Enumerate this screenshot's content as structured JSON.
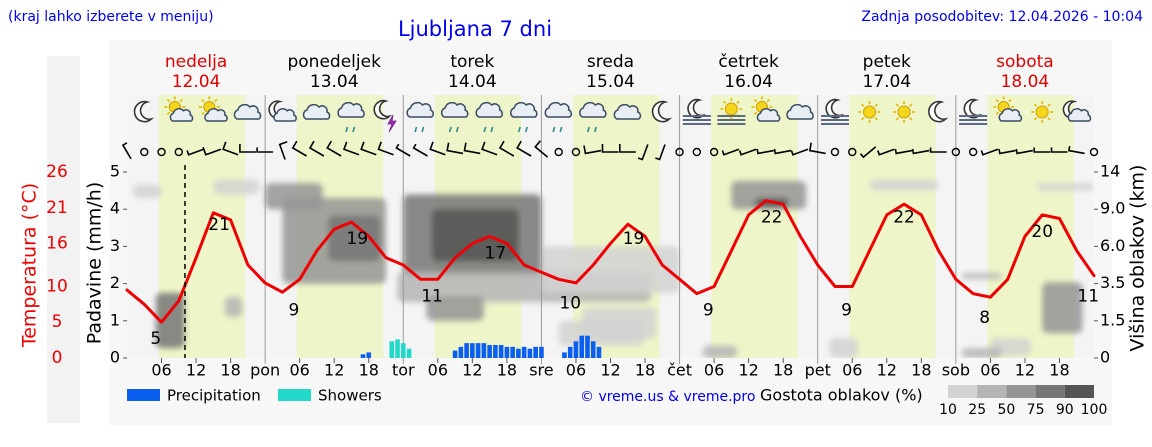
{
  "chart_data": {
    "type": "meteogram",
    "title": "Ljubljana 7 dni",
    "subtitle": "(kraj lahko izberete v meniju)",
    "updated": "Zadnja posodobitev: 12.04.2026 - 10:04",
    "credit": "© vreme.us & vreme.pro",
    "days": [
      {
        "name": "nedelja",
        "date": "12.04",
        "color": "#e00000"
      },
      {
        "name": "ponedeljek",
        "date": "13.04",
        "color": "#000000"
      },
      {
        "name": "torek",
        "date": "14.04",
        "color": "#000000"
      },
      {
        "name": "sreda",
        "date": "15.04",
        "color": "#000000"
      },
      {
        "name": "četrtek",
        "date": "16.04",
        "color": "#000000"
      },
      {
        "name": "petek",
        "date": "17.04",
        "color": "#000000"
      },
      {
        "name": "sobota",
        "date": "18.04",
        "color": "#e00000"
      }
    ],
    "daylight_hours": [
      5.5,
      20.5
    ],
    "daylight_color": "#eef5c8",
    "now": 10.07,
    "xlim": [
      0,
      168
    ],
    "xticks": [
      {
        "value": 6,
        "label": "06"
      },
      {
        "value": 12,
        "label": "12"
      },
      {
        "value": 18,
        "label": "18"
      },
      {
        "value": 24,
        "label": "pon"
      },
      {
        "value": 30,
        "label": "06"
      },
      {
        "value": 36,
        "label": "12"
      },
      {
        "value": 42,
        "label": "18"
      },
      {
        "value": 48,
        "label": "tor"
      },
      {
        "value": 54,
        "label": "06"
      },
      {
        "value": 60,
        "label": "12"
      },
      {
        "value": 66,
        "label": "18"
      },
      {
        "value": 72,
        "label": "sre"
      },
      {
        "value": 78,
        "label": "06"
      },
      {
        "value": 84,
        "label": "12"
      },
      {
        "value": 90,
        "label": "18"
      },
      {
        "value": 96,
        "label": "čet"
      },
      {
        "value": 102,
        "label": "06"
      },
      {
        "value": 108,
        "label": "12"
      },
      {
        "value": 114,
        "label": "18"
      },
      {
        "value": 120,
        "label": "pet"
      },
      {
        "value": 126,
        "label": "06"
      },
      {
        "value": 132,
        "label": "12"
      },
      {
        "value": 138,
        "label": "18"
      },
      {
        "value": 144,
        "label": "sob"
      },
      {
        "value": 150,
        "label": "06"
      },
      {
        "value": 156,
        "label": "12"
      },
      {
        "value": 162,
        "label": "18"
      }
    ],
    "ylabel": "Padavine (mm/h)",
    "ylim": [
      0,
      5
    ],
    "yticks": [
      0,
      1,
      2,
      3,
      4,
      5
    ],
    "y2label": "Višina oblakov (km)",
    "y2ticks": [
      0,
      1.5,
      3.5,
      {
        "value": 6,
        "label": "6.0"
      },
      {
        "value": 9,
        "label": "9.0"
      },
      14
    ],
    "temperature": {
      "label": "Temperatura (°C)",
      "color": "#ee0000",
      "ylim": [
        0,
        26
      ],
      "yticks": [
        0,
        5,
        10,
        16,
        21,
        26
      ],
      "x": [
        0,
        3,
        6,
        9,
        12,
        15,
        18,
        21,
        24,
        27,
        30,
        33,
        36,
        39,
        42,
        45,
        48,
        51,
        54,
        57,
        60,
        63,
        66,
        69,
        72,
        75,
        78,
        81,
        84,
        87,
        90,
        93,
        96,
        99,
        102,
        105,
        108,
        111,
        114,
        117,
        120,
        123,
        126,
        129,
        132,
        135,
        138,
        141,
        144,
        147,
        150,
        153,
        156,
        159,
        162,
        165,
        168
      ],
      "values": [
        9.5,
        7.5,
        5,
        8,
        14,
        20.3,
        19.3,
        13,
        10.5,
        9.2,
        11,
        15,
        18,
        19,
        17,
        14,
        13,
        11,
        11,
        14,
        16,
        17,
        16,
        13,
        12,
        11,
        10.5,
        13,
        16,
        18.7,
        17,
        13,
        11,
        9,
        10,
        15,
        20,
        22,
        21.5,
        17,
        13,
        10,
        10,
        15,
        20,
        21.5,
        20,
        15,
        11,
        9,
        8.5,
        11,
        17,
        20,
        19.5,
        15,
        11.5
      ],
      "extremes": [
        {
          "x": 5,
          "value": 5
        },
        {
          "x": 16,
          "value": 21
        },
        {
          "x": 29,
          "value": 9
        },
        {
          "x": 40,
          "value": 19
        },
        {
          "x": 53,
          "value": 11
        },
        {
          "x": 64,
          "value": 17
        },
        {
          "x": 77,
          "value": 10
        },
        {
          "x": 88,
          "value": 19
        },
        {
          "x": 101,
          "value": 9
        },
        {
          "x": 112,
          "value": 22
        },
        {
          "x": 125,
          "value": 9
        },
        {
          "x": 135,
          "value": 22
        },
        {
          "x": 149,
          "value": 8
        },
        {
          "x": 159,
          "value": 20
        },
        {
          "x": 167,
          "value": 11
        }
      ]
    },
    "series": [
      {
        "name": "Precipitation",
        "color": "#0a5ef0",
        "x": [
          41,
          42,
          57,
          58,
          59,
          60,
          61,
          62,
          63,
          64,
          65,
          66,
          67,
          68,
          69,
          70,
          71,
          72,
          76,
          77,
          78,
          79,
          80,
          81,
          82
        ],
        "values": [
          0.1,
          0.15,
          0.2,
          0.3,
          0.4,
          0.4,
          0.4,
          0.4,
          0.35,
          0.35,
          0.35,
          0.3,
          0.3,
          0.25,
          0.3,
          0.25,
          0.3,
          0.3,
          0.15,
          0.3,
          0.45,
          0.6,
          0.6,
          0.45,
          0.3
        ]
      },
      {
        "name": "Showers",
        "color": "#22d9c9",
        "x": [
          46,
          47,
          48,
          49
        ],
        "values": [
          0.45,
          0.5,
          0.4,
          0.25
        ]
      }
    ],
    "cloud_legend": {
      "title": "Gostota oblakov (%)",
      "ticks": [
        10,
        25,
        50,
        75,
        90,
        100
      ],
      "colors": [
        "#d2d2d2",
        "#b4b4b4",
        "#959595",
        "#767676",
        "#555555"
      ]
    },
    "clouds": [
      {
        "hours": [
          1,
          6
        ],
        "km": [
          10.5,
          12.3
        ],
        "density": 20
      },
      {
        "hours": [
          15,
          23
        ],
        "km": [
          11,
          13
        ],
        "density": 20
      },
      {
        "hours": [
          24,
          34
        ],
        "km": [
          9,
          12.5
        ],
        "density": 60
      },
      {
        "hours": [
          27,
          45
        ],
        "km": [
          3.5,
          10.5
        ],
        "density": 60
      },
      {
        "hours": [
          35,
          44
        ],
        "km": [
          5,
          8.5
        ],
        "density": 80
      },
      {
        "hours": [
          48,
          72
        ],
        "km": [
          4,
          11
        ],
        "density": 80
      },
      {
        "hours": [
          53,
          68
        ],
        "km": [
          5,
          9
        ],
        "density": 95
      },
      {
        "hours": [
          47,
          91
        ],
        "km": [
          2.5,
          4.3
        ],
        "density": 40
      },
      {
        "hours": [
          72,
          96
        ],
        "km": [
          3,
          6
        ],
        "density": 20
      },
      {
        "hours": [
          52,
          62
        ],
        "km": [
          1.5,
          2.8
        ],
        "density": 60
      },
      {
        "hours": [
          79,
          92
        ],
        "km": [
          0.8,
          2.2
        ],
        "density": 20
      },
      {
        "hours": [
          5,
          10
        ],
        "km": [
          0.4,
          3
        ],
        "density": 80
      },
      {
        "hours": [
          17,
          20
        ],
        "km": [
          1.7,
          2.8
        ],
        "density": 40
      },
      {
        "hours": [
          100,
          106
        ],
        "km": [
          0,
          0.5
        ],
        "density": 40
      },
      {
        "hours": [
          105,
          118
        ],
        "km": [
          9,
          12.8
        ],
        "density": 60
      },
      {
        "hours": [
          109,
          115
        ],
        "km": [
          9.2,
          10.5
        ],
        "density": 95
      },
      {
        "hours": [
          122,
          127
        ],
        "km": [
          0,
          0.8
        ],
        "density": 20
      },
      {
        "hours": [
          129,
          141
        ],
        "km": [
          11.5,
          13
        ],
        "density": 20
      },
      {
        "hours": [
          145,
          152
        ],
        "km": [
          3.8,
          4.2
        ],
        "density": 40
      },
      {
        "hours": [
          159,
          166
        ],
        "km": [
          1,
          3.6
        ],
        "density": 60
      },
      {
        "hours": [
          158,
          168
        ],
        "km": [
          11.5,
          12.5
        ],
        "density": 20
      },
      {
        "hours": [
          150,
          157
        ],
        "km": [
          0.1,
          0.8
        ],
        "density": 20
      },
      {
        "hours": [
          75,
          90
        ],
        "km": [
          0.5,
          1.5
        ],
        "density": 20
      },
      {
        "hours": [
          145,
          152
        ],
        "km": [
          0,
          0.4
        ],
        "density": 40
      }
    ],
    "weather_icons": {
      "x": [
        3,
        9,
        15,
        21,
        27,
        33,
        39,
        45,
        51,
        57,
        63,
        69,
        75,
        81,
        87,
        93,
        99,
        105,
        111,
        117,
        123,
        129,
        135,
        141,
        147,
        153,
        159,
        165
      ],
      "values": [
        "moon",
        "sun-cloud",
        "sun-cloud",
        "cloud",
        "moon-cloud",
        "cloud",
        "cloud-rain",
        "moon-storm",
        "cloud-rain",
        "cloud-rain",
        "cloud-rain",
        "cloud-rain",
        "cloud-rain",
        "cloud-rain",
        "cloud",
        "moon",
        "moon-fog",
        "sun-fog",
        "sun-cloud",
        "cloud",
        "moon-fog",
        "sun",
        "sun",
        "moon",
        "moon-fog",
        "sun-cloud",
        "sun",
        "moon-cloud"
      ]
    },
    "wind": {
      "x": [
        0,
        3,
        6,
        9,
        12,
        15,
        18,
        21,
        24,
        27,
        30,
        33,
        36,
        39,
        42,
        45,
        48,
        51,
        54,
        57,
        60,
        63,
        66,
        69,
        72,
        75,
        78,
        81,
        84,
        87,
        90,
        93,
        96,
        99,
        102,
        105,
        108,
        111,
        114,
        117,
        120,
        123,
        126,
        129,
        132,
        135,
        138,
        141,
        144,
        147,
        150,
        153,
        156,
        159,
        162,
        165,
        168
      ],
      "speed": [
        5,
        0,
        0,
        0,
        5,
        10,
        10,
        10,
        5,
        10,
        10,
        10,
        10,
        10,
        10,
        10,
        5,
        5,
        10,
        10,
        10,
        10,
        10,
        10,
        10,
        0,
        0,
        10,
        10,
        10,
        5,
        5,
        0,
        0,
        0,
        5,
        5,
        5,
        5,
        5,
        10,
        0,
        0,
        5,
        5,
        5,
        5,
        5,
        0,
        0,
        5,
        5,
        5,
        5,
        5,
        5,
        0
      ],
      "dir": [
        330,
        null,
        null,
        null,
        250,
        250,
        290,
        270,
        270,
        340,
        300,
        300,
        300,
        290,
        290,
        290,
        300,
        300,
        290,
        280,
        280,
        290,
        300,
        300,
        310,
        null,
        null,
        260,
        270,
        270,
        200,
        200,
        null,
        null,
        null,
        250,
        250,
        260,
        260,
        250,
        280,
        null,
        null,
        230,
        250,
        260,
        260,
        270,
        null,
        null,
        250,
        260,
        260,
        270,
        270,
        280,
        null
      ]
    }
  }
}
